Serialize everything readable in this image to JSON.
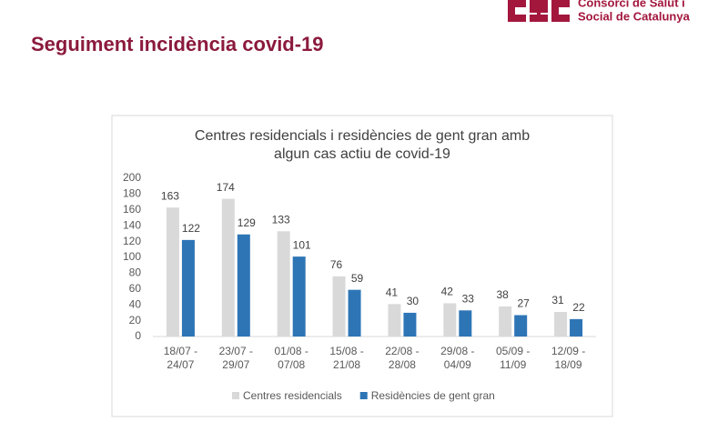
{
  "header": {
    "logo_lines": [
      "Consorci de Salut i",
      "Social de Catalunya"
    ],
    "title": "Seguiment incidència covid-19"
  },
  "chart_data": {
    "type": "bar",
    "title": [
      "Centres residencials i residències de gent gran amb",
      "algun cas actiu de covid-19"
    ],
    "categories": [
      "18/07 - 24/07",
      "23/07 - 29/07",
      "01/08 - 07/08",
      "15/08 - 21/08",
      "22/08 - 28/08",
      "29/08 - 04/09",
      "05/09 - 11/09",
      "12/09 - 18/09"
    ],
    "series": [
      {
        "name": "Centres residencials",
        "color": "#d9d9d9",
        "values": [
          163,
          174,
          133,
          76,
          41,
          42,
          38,
          31
        ]
      },
      {
        "name": "Residències de gent gran",
        "color": "#2e75b6",
        "values": [
          122,
          129,
          101,
          59,
          30,
          33,
          27,
          22
        ]
      }
    ],
    "ylim": [
      0,
      200
    ],
    "yticks": [
      0,
      20,
      40,
      60,
      80,
      100,
      120,
      140,
      160,
      180,
      200
    ],
    "grid": false,
    "legend": "bottom"
  }
}
